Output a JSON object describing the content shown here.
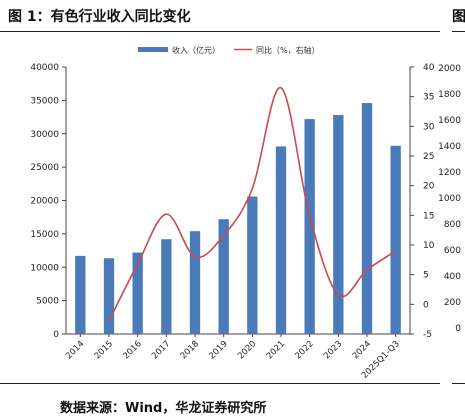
{
  "figure": {
    "title": "图 1：有色行业收入同比变化",
    "next_figure_fragment": "图",
    "source": "数据来源：Wind，华龙证券研究所"
  },
  "chart_data": {
    "type": "bar",
    "categories": [
      "2014",
      "2015",
      "2016",
      "2017",
      "2018",
      "2019",
      "2020",
      "2021",
      "2022",
      "2023",
      "2024",
      "2025Q1-Q3"
    ],
    "series": [
      {
        "name": "收入（亿元）",
        "type": "bar",
        "axis": "left",
        "color": "#4a7ab8",
        "values": [
          11700,
          11350,
          12200,
          14200,
          15400,
          17200,
          20600,
          28100,
          32200,
          32800,
          34600,
          28200
        ]
      },
      {
        "name": "同比（%，右轴）",
        "type": "line",
        "axis": "right",
        "color": "#c94b4b",
        "values": [
          null,
          -2.8,
          6.8,
          15.2,
          8.0,
          11.6,
          19.5,
          36.5,
          14.8,
          1.6,
          5.8,
          9.0
        ]
      }
    ],
    "y_left": {
      "ylim": [
        0,
        40000
      ],
      "ticks": [
        "0",
        "5000",
        "10000",
        "15000",
        "20000",
        "25000",
        "30000",
        "35000",
        "40000"
      ]
    },
    "y_right": {
      "ylim": [
        -5,
        40
      ],
      "ticks": [
        "-5",
        "0",
        "5",
        "10",
        "15",
        "20",
        "25",
        "30",
        "35",
        "40"
      ]
    },
    "y_clipped_axis": {
      "ticks": [
        "0",
        "200",
        "400",
        "600",
        "800",
        "1000",
        "1200",
        "1400",
        "1600",
        "1800",
        "2000"
      ]
    },
    "legend_position": "top-center",
    "grid": false
  }
}
